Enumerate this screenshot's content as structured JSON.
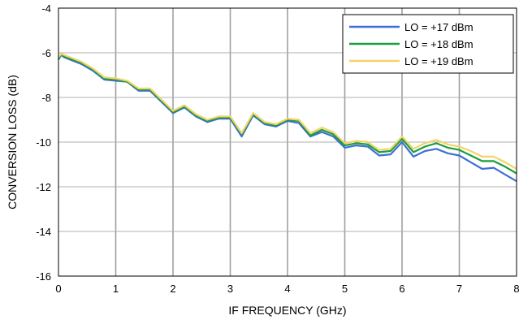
{
  "chart_data": {
    "type": "line",
    "title": "",
    "xlabel": "IF FREQUENCY (GHz)",
    "ylabel": "CONVERSION LOSS (dB)",
    "xlim": [
      0,
      8
    ],
    "ylim": [
      -16,
      -4
    ],
    "x_ticks": [
      "0",
      "1",
      "2",
      "3",
      "4",
      "5",
      "6",
      "7",
      "8"
    ],
    "y_ticks": [
      "-4",
      "-6",
      "-8",
      "-10",
      "-12",
      "-14",
      "-16"
    ],
    "grid": true,
    "legend_position": "top-right",
    "x": [
      0,
      0.05,
      0.1,
      0.2,
      0.4,
      0.6,
      0.8,
      1.0,
      1.2,
      1.4,
      1.6,
      1.8,
      2.0,
      2.2,
      2.4,
      2.6,
      2.8,
      3.0,
      3.2,
      3.4,
      3.6,
      3.8,
      4.0,
      4.2,
      4.4,
      4.6,
      4.8,
      5.0,
      5.2,
      5.4,
      5.6,
      5.8,
      6.0,
      6.2,
      6.4,
      6.6,
      6.8,
      7.0,
      7.2,
      7.4,
      7.6,
      7.8,
      8.0
    ],
    "series": [
      {
        "name": "LO = +17 dBm",
        "color": "#3d6fd6",
        "values": [
          -6.3,
          -6.1,
          -6.2,
          -6.3,
          -6.5,
          -6.8,
          -7.2,
          -7.25,
          -7.3,
          -7.7,
          -7.7,
          -8.2,
          -8.7,
          -8.45,
          -8.85,
          -9.1,
          -8.95,
          -8.95,
          -9.75,
          -8.8,
          -9.2,
          -9.3,
          -9.05,
          -9.15,
          -9.75,
          -9.55,
          -9.75,
          -10.25,
          -10.15,
          -10.2,
          -10.6,
          -10.55,
          -10.0,
          -10.65,
          -10.4,
          -10.3,
          -10.5,
          -10.6,
          -10.9,
          -11.2,
          -11.15,
          -11.45,
          -11.75
        ]
      },
      {
        "name": "LO = +18 dBm",
        "color": "#1a9e3a",
        "values": [
          -6.25,
          -6.1,
          -6.15,
          -6.25,
          -6.45,
          -6.75,
          -7.15,
          -7.2,
          -7.3,
          -7.65,
          -7.65,
          -8.15,
          -8.65,
          -8.4,
          -8.8,
          -9.05,
          -8.9,
          -8.9,
          -9.65,
          -8.75,
          -9.15,
          -9.25,
          -9.0,
          -9.05,
          -9.7,
          -9.45,
          -9.65,
          -10.15,
          -10.05,
          -10.1,
          -10.45,
          -10.4,
          -9.85,
          -10.45,
          -10.2,
          -10.05,
          -10.25,
          -10.35,
          -10.6,
          -10.85,
          -10.85,
          -11.1,
          -11.4
        ]
      },
      {
        "name": "LO = +19 dBm",
        "color": "#f2d46b",
        "values": [
          -6.2,
          -6.05,
          -6.1,
          -6.2,
          -6.4,
          -6.7,
          -7.1,
          -7.15,
          -7.25,
          -7.6,
          -7.6,
          -8.1,
          -8.6,
          -8.35,
          -8.75,
          -9.0,
          -8.85,
          -8.85,
          -9.6,
          -8.7,
          -9.1,
          -9.2,
          -8.95,
          -9.0,
          -9.6,
          -9.35,
          -9.55,
          -10.05,
          -9.95,
          -10.0,
          -10.35,
          -10.3,
          -9.75,
          -10.3,
          -10.05,
          -9.9,
          -10.1,
          -10.2,
          -10.4,
          -10.65,
          -10.65,
          -10.9,
          -11.2
        ]
      }
    ]
  }
}
